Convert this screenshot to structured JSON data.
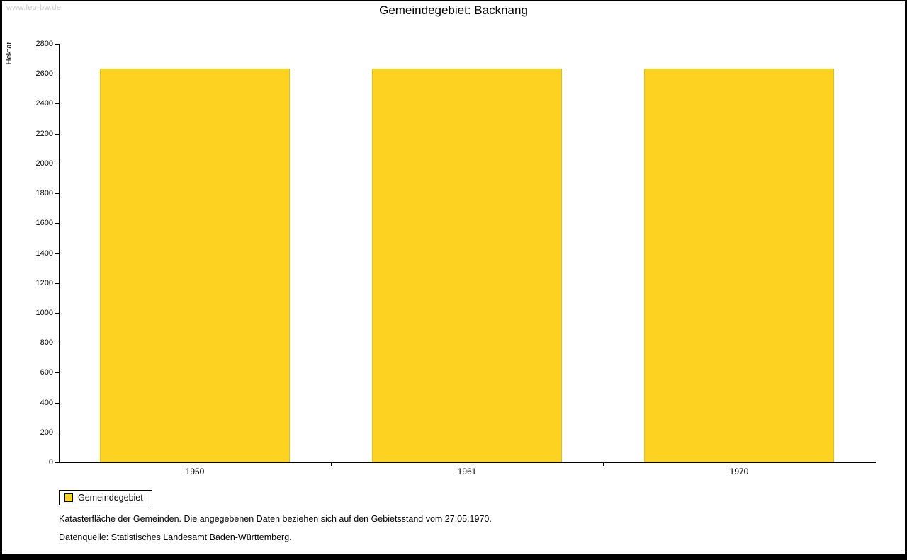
{
  "watermark": "www.leo-bw.de",
  "title": "Gemeindegebiet: Backnang",
  "chart_data": {
    "type": "bar",
    "title": "Gemeindegebiet: Backnang",
    "categories": [
      "1950",
      "1961",
      "1970"
    ],
    "values": [
      2634,
      2634,
      2634
    ],
    "xlabel": "",
    "ylabel": "Hektar",
    "ylim": [
      0,
      2800
    ],
    "ytick_step": 200,
    "bar_color": "#FDD220",
    "bar_outline": "#E8BD12",
    "grid": false,
    "legend_position": "bottom-left",
    "legend": [
      {
        "label": "Gemeindegebiet",
        "color": "#FDD220"
      }
    ]
  },
  "notes": [
    "Katasterfläche der Gemeinden. Die angegebenen Daten beziehen sich auf den Gebietsstand vom 27.05.1970.",
    "Datenquelle: Statistisches Landesamt Baden-Württemberg."
  ]
}
